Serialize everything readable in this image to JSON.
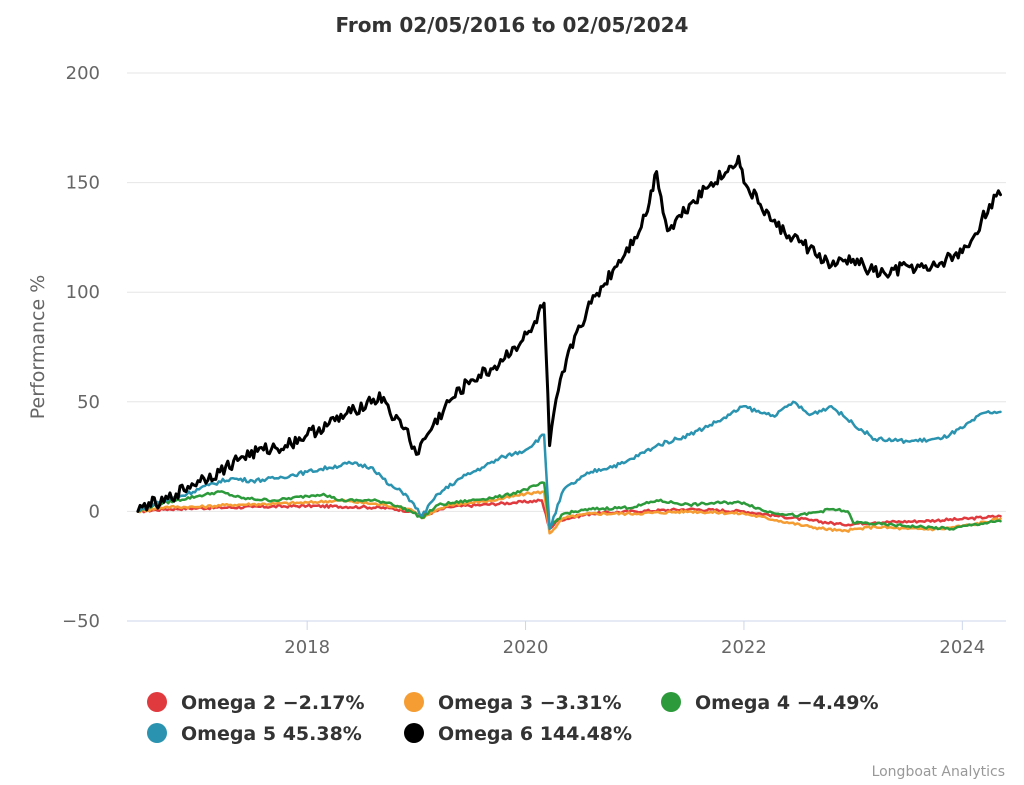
{
  "chart_data": {
    "type": "line",
    "title": "From 02/05/2016 to 02/05/2024",
    "xlabel": "",
    "ylabel": "Performance %",
    "xlim": [
      2016.35,
      2024.4
    ],
    "ylim": [
      -50,
      200
    ],
    "yticks": [
      -50,
      0,
      50,
      100,
      150,
      200
    ],
    "ytick_labels": [
      "−50",
      "0",
      "50",
      "100",
      "150",
      "200"
    ],
    "xticks": [
      2018,
      2020,
      2022,
      2024
    ],
    "xtick_labels": [
      "2018",
      "2020",
      "2022",
      "2024"
    ],
    "grid": true,
    "legend_position": "bottom",
    "credit": "Longboat Analytics",
    "series": [
      {
        "name": "Omega 2",
        "legend_label": "Omega 2 −2.17%",
        "color": "#E03A3E",
        "points": [
          [
            2016.45,
            0
          ],
          [
            2016.7,
            1
          ],
          [
            2017,
            1.5
          ],
          [
            2017.5,
            2
          ],
          [
            2018,
            2.5
          ],
          [
            2018.5,
            2
          ],
          [
            2018.75,
            1.5
          ],
          [
            2018.95,
            0
          ],
          [
            2019.05,
            -2
          ],
          [
            2019.3,
            2
          ],
          [
            2019.6,
            3
          ],
          [
            2019.9,
            4
          ],
          [
            2020.15,
            5
          ],
          [
            2020.22,
            -8
          ],
          [
            2020.3,
            -4
          ],
          [
            2020.6,
            -1
          ],
          [
            2021,
            0
          ],
          [
            2021.5,
            1
          ],
          [
            2022,
            0
          ],
          [
            2022.3,
            -2
          ],
          [
            2022.6,
            -4
          ],
          [
            2022.9,
            -6
          ],
          [
            2023.2,
            -5
          ],
          [
            2023.6,
            -4.5
          ],
          [
            2024,
            -3.5
          ],
          [
            2024.35,
            -2.17
          ]
        ]
      },
      {
        "name": "Omega 3",
        "legend_label": "Omega 3 −3.31%",
        "color": "#F59C33",
        "points": [
          [
            2016.45,
            0
          ],
          [
            2016.7,
            2
          ],
          [
            2017,
            2
          ],
          [
            2017.3,
            3
          ],
          [
            2017.7,
            3.5
          ],
          [
            2018,
            4
          ],
          [
            2018.3,
            5
          ],
          [
            2018.7,
            3
          ],
          [
            2018.95,
            1
          ],
          [
            2019.05,
            -3
          ],
          [
            2019.3,
            3
          ],
          [
            2019.7,
            5
          ],
          [
            2020,
            8
          ],
          [
            2020.17,
            9
          ],
          [
            2020.22,
            -10
          ],
          [
            2020.35,
            -3
          ],
          [
            2020.6,
            -1
          ],
          [
            2021,
            -1
          ],
          [
            2021.5,
            0
          ],
          [
            2022,
            -1
          ],
          [
            2022.3,
            -4
          ],
          [
            2022.6,
            -7
          ],
          [
            2022.9,
            -9
          ],
          [
            2023.2,
            -7
          ],
          [
            2023.5,
            -8
          ],
          [
            2023.8,
            -8
          ],
          [
            2024.1,
            -6
          ],
          [
            2024.35,
            -3.31
          ]
        ]
      },
      {
        "name": "Omega 4",
        "legend_label": "Omega 4 −4.49%",
        "color": "#2C9A3A",
        "points": [
          [
            2016.45,
            0
          ],
          [
            2016.6,
            3
          ],
          [
            2016.8,
            5
          ],
          [
            2017,
            7
          ],
          [
            2017.2,
            9
          ],
          [
            2017.4,
            6
          ],
          [
            2017.7,
            5
          ],
          [
            2018,
            7
          ],
          [
            2018.15,
            8
          ],
          [
            2018.3,
            5
          ],
          [
            2018.6,
            5
          ],
          [
            2018.75,
            4
          ],
          [
            2018.95,
            0
          ],
          [
            2019.05,
            -3
          ],
          [
            2019.2,
            3
          ],
          [
            2019.5,
            5
          ],
          [
            2019.8,
            7
          ],
          [
            2020,
            10
          ],
          [
            2020.17,
            13
          ],
          [
            2020.22,
            -7
          ],
          [
            2020.35,
            -1
          ],
          [
            2020.6,
            1
          ],
          [
            2021,
            2
          ],
          [
            2021.2,
            5
          ],
          [
            2021.5,
            3
          ],
          [
            2021.8,
            4
          ],
          [
            2022,
            4
          ],
          [
            2022.2,
            0
          ],
          [
            2022.5,
            -2
          ],
          [
            2022.8,
            1
          ],
          [
            2022.95,
            0
          ],
          [
            2023,
            -5
          ],
          [
            2023.3,
            -6
          ],
          [
            2023.6,
            -7
          ],
          [
            2023.9,
            -8
          ],
          [
            2024.1,
            -6
          ],
          [
            2024.35,
            -4.49
          ]
        ]
      },
      {
        "name": "Omega 5",
        "legend_label": "Omega 5 45.38%",
        "color": "#2A93B0",
        "points": [
          [
            2016.45,
            0
          ],
          [
            2016.55,
            3
          ],
          [
            2016.7,
            5
          ],
          [
            2016.9,
            8
          ],
          [
            2017.1,
            12
          ],
          [
            2017.3,
            15
          ],
          [
            2017.5,
            14
          ],
          [
            2017.7,
            15
          ],
          [
            2018,
            18
          ],
          [
            2018.2,
            20
          ],
          [
            2018.4,
            22
          ],
          [
            2018.6,
            20
          ],
          [
            2018.75,
            12
          ],
          [
            2018.9,
            8
          ],
          [
            2019.05,
            -2
          ],
          [
            2019.2,
            8
          ],
          [
            2019.4,
            15
          ],
          [
            2019.6,
            20
          ],
          [
            2019.8,
            25
          ],
          [
            2020,
            28
          ],
          [
            2020.17,
            35
          ],
          [
            2020.22,
            -8
          ],
          [
            2020.35,
            10
          ],
          [
            2020.6,
            18
          ],
          [
            2020.9,
            22
          ],
          [
            2021.2,
            30
          ],
          [
            2021.5,
            35
          ],
          [
            2021.8,
            42
          ],
          [
            2022,
            48
          ],
          [
            2022.15,
            45
          ],
          [
            2022.3,
            44
          ],
          [
            2022.45,
            50
          ],
          [
            2022.6,
            44
          ],
          [
            2022.8,
            48
          ],
          [
            2023,
            40
          ],
          [
            2023.2,
            33
          ],
          [
            2023.5,
            32
          ],
          [
            2023.8,
            33
          ],
          [
            2024,
            38
          ],
          [
            2024.2,
            45
          ],
          [
            2024.35,
            45.38
          ]
        ]
      },
      {
        "name": "Omega 6",
        "legend_label": "Omega 6 144.48%",
        "color": "#000000",
        "points": [
          [
            2016.45,
            0
          ],
          [
            2016.55,
            4
          ],
          [
            2016.65,
            3
          ],
          [
            2016.8,
            8
          ],
          [
            2017,
            14
          ],
          [
            2017.2,
            18
          ],
          [
            2017.4,
            25
          ],
          [
            2017.6,
            28
          ],
          [
            2017.8,
            30
          ],
          [
            2018,
            35
          ],
          [
            2018.2,
            40
          ],
          [
            2018.4,
            45
          ],
          [
            2018.55,
            50
          ],
          [
            2018.7,
            52
          ],
          [
            2018.8,
            42
          ],
          [
            2018.9,
            38
          ],
          [
            2019.0,
            26
          ],
          [
            2019.1,
            35
          ],
          [
            2019.3,
            50
          ],
          [
            2019.5,
            60
          ],
          [
            2019.7,
            65
          ],
          [
            2019.9,
            75
          ],
          [
            2020.05,
            82
          ],
          [
            2020.17,
            95
          ],
          [
            2020.22,
            30
          ],
          [
            2020.3,
            55
          ],
          [
            2020.45,
            80
          ],
          [
            2020.6,
            95
          ],
          [
            2020.8,
            110
          ],
          [
            2021.0,
            125
          ],
          [
            2021.1,
            135
          ],
          [
            2021.2,
            155
          ],
          [
            2021.3,
            128
          ],
          [
            2021.5,
            140
          ],
          [
            2021.7,
            150
          ],
          [
            2021.85,
            155
          ],
          [
            2021.95,
            162
          ],
          [
            2022.0,
            150
          ],
          [
            2022.15,
            140
          ],
          [
            2022.3,
            130
          ],
          [
            2022.45,
            125
          ],
          [
            2022.6,
            120
          ],
          [
            2022.8,
            112
          ],
          [
            2023.0,
            115
          ],
          [
            2023.15,
            110
          ],
          [
            2023.3,
            108
          ],
          [
            2023.5,
            112
          ],
          [
            2023.7,
            110
          ],
          [
            2023.85,
            115
          ],
          [
            2024.0,
            118
          ],
          [
            2024.1,
            125
          ],
          [
            2024.25,
            140
          ],
          [
            2024.35,
            144.48
          ]
        ]
      }
    ]
  }
}
